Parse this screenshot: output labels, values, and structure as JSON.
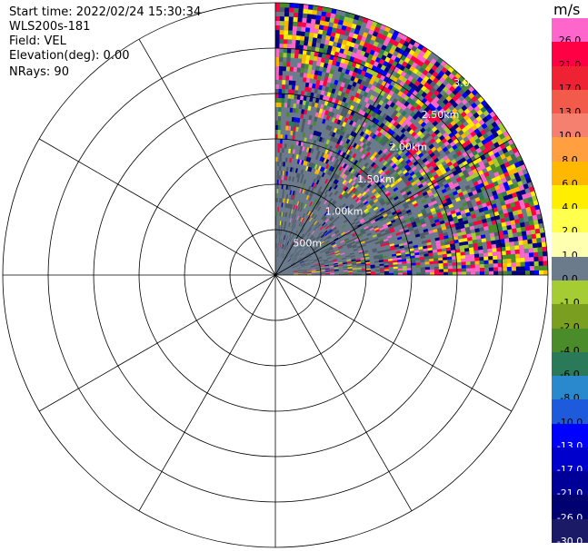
{
  "header": {
    "start_time": "Start time: 2022/02/24 15:30:34",
    "instrument": "WLS200s-181",
    "field": "Field: VEL",
    "elevation": "Elevation(deg): 0.00",
    "nrays": "NRays: 90"
  },
  "colorbar": {
    "unit": "m/s",
    "segments": [
      {
        "label": "26.0",
        "color": "#ff66cc",
        "text": "#000000"
      },
      {
        "label": "21.0",
        "color": "#ff0044",
        "text": "#000000"
      },
      {
        "label": "17.0",
        "color": "#ee2233",
        "text": "#000000"
      },
      {
        "label": "13.0",
        "color": "#f25a4a",
        "text": "#000000"
      },
      {
        "label": "10.0",
        "color": "#f58070",
        "text": "#000000"
      },
      {
        "label": "8.0",
        "color": "#ff9f40",
        "text": "#000000"
      },
      {
        "label": "6.0",
        "color": "#ffb800",
        "text": "#000000"
      },
      {
        "label": "4.0",
        "color": "#ffee00",
        "text": "#000000"
      },
      {
        "label": "2.0",
        "color": "#ffff4d",
        "text": "#000000"
      },
      {
        "label": "1.0",
        "color": "#ffffb0",
        "text": "#000000"
      },
      {
        "label": "0.0",
        "color": "#6b7b8c",
        "text": "#000000"
      },
      {
        "label": "-1.0",
        "color": "#a6cc33",
        "text": "#000000"
      },
      {
        "label": "-2.0",
        "color": "#7a9e1f",
        "text": "#000000"
      },
      {
        "label": "-4.0",
        "color": "#4a8c2a",
        "text": "#000000"
      },
      {
        "label": "-6.0",
        "color": "#2a7a5a",
        "text": "#000000"
      },
      {
        "label": "-8.0",
        "color": "#2a88cc",
        "text": "#000000"
      },
      {
        "label": "-10.0",
        "color": "#1e5adc",
        "text": "#000000"
      },
      {
        "label": "-13.0",
        "color": "#0000ff",
        "text": "#ffffff"
      },
      {
        "label": "-17.0",
        "color": "#0000cc",
        "text": "#ffffff"
      },
      {
        "label": "-21.0",
        "color": "#000099",
        "text": "#ffffff"
      },
      {
        "label": "-26.0",
        "color": "#000070",
        "text": "#ffffff"
      },
      {
        "label": "-30.0",
        "color": "#1a1a66",
        "text": "#ffffff"
      }
    ]
  },
  "chart_data": {
    "type": "heatmap",
    "projection": "polar PPI",
    "field": "VEL",
    "unit": "m/s",
    "elevation_deg": 0.0,
    "nrays": 90,
    "azimuth_range_deg": [
      0,
      90
    ],
    "range_labels": [
      "500m",
      "1.00km",
      "1.50km",
      "2.00km",
      "2.50km",
      "3.0"
    ],
    "range_ticks_m": [
      500,
      1000,
      1500,
      2000,
      2500,
      3000
    ],
    "max_range_m": 3000,
    "spoke_step_deg": 30,
    "background_color": "#6b7b8c",
    "colors": {
      "pink": "#ff66cc",
      "red": "#ff0044",
      "yellow": "#ffee00",
      "orange": "#ffb800",
      "navy": "#000080",
      "blue": "#0000ff",
      "green": "#4a8c2a",
      "lightgreen": "#a6cc33",
      "teal": "#2a7a5a",
      "gray": "#6b7b8c",
      "darkgray": "#4f5b66"
    }
  }
}
